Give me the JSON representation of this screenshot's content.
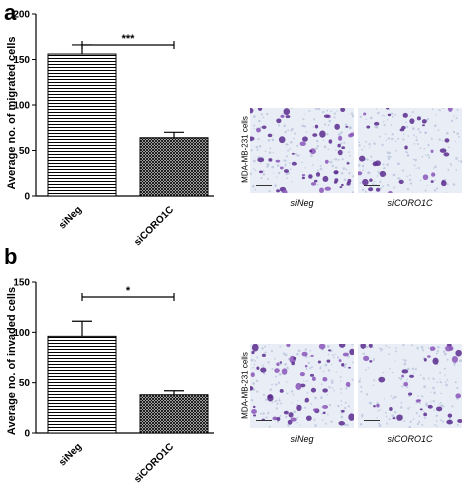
{
  "panels": [
    {
      "letter": "a",
      "ylabel": "Average no. of migrated cells",
      "micro_side_label": "MDA-MB-231 cells",
      "micro_labels": [
        "siNeg",
        "siCORO1C"
      ],
      "significance": "***"
    },
    {
      "letter": "b",
      "ylabel": "Average no. of invaded cells",
      "micro_side_label": "MDA-MB-231 cells",
      "micro_labels": [
        "siNeg",
        "siCORO1C"
      ],
      "significance": "*"
    }
  ],
  "chart_data": [
    {
      "type": "bar",
      "categories": [
        "siNeg",
        "siCORO1C"
      ],
      "values": [
        156,
        64
      ],
      "errors": [
        10,
        6
      ],
      "ylabel": "Average no. of migrated cells",
      "ylim": [
        0,
        200
      ],
      "yticks": [
        "0",
        "50",
        "100",
        "150",
        "200"
      ],
      "significance": "***",
      "patterns": [
        "horizontal-lines",
        "crosshatch"
      ]
    },
    {
      "type": "bar",
      "categories": [
        "siNeg",
        "siCORO1C"
      ],
      "values": [
        96,
        38
      ],
      "errors": [
        15,
        4
      ],
      "ylabel": "Average no. of invaded cells",
      "ylim": [
        0,
        150
      ],
      "yticks": [
        "0",
        "50",
        "100",
        "150"
      ],
      "significance": "*",
      "patterns": [
        "horizontal-lines",
        "crosshatch"
      ]
    }
  ]
}
